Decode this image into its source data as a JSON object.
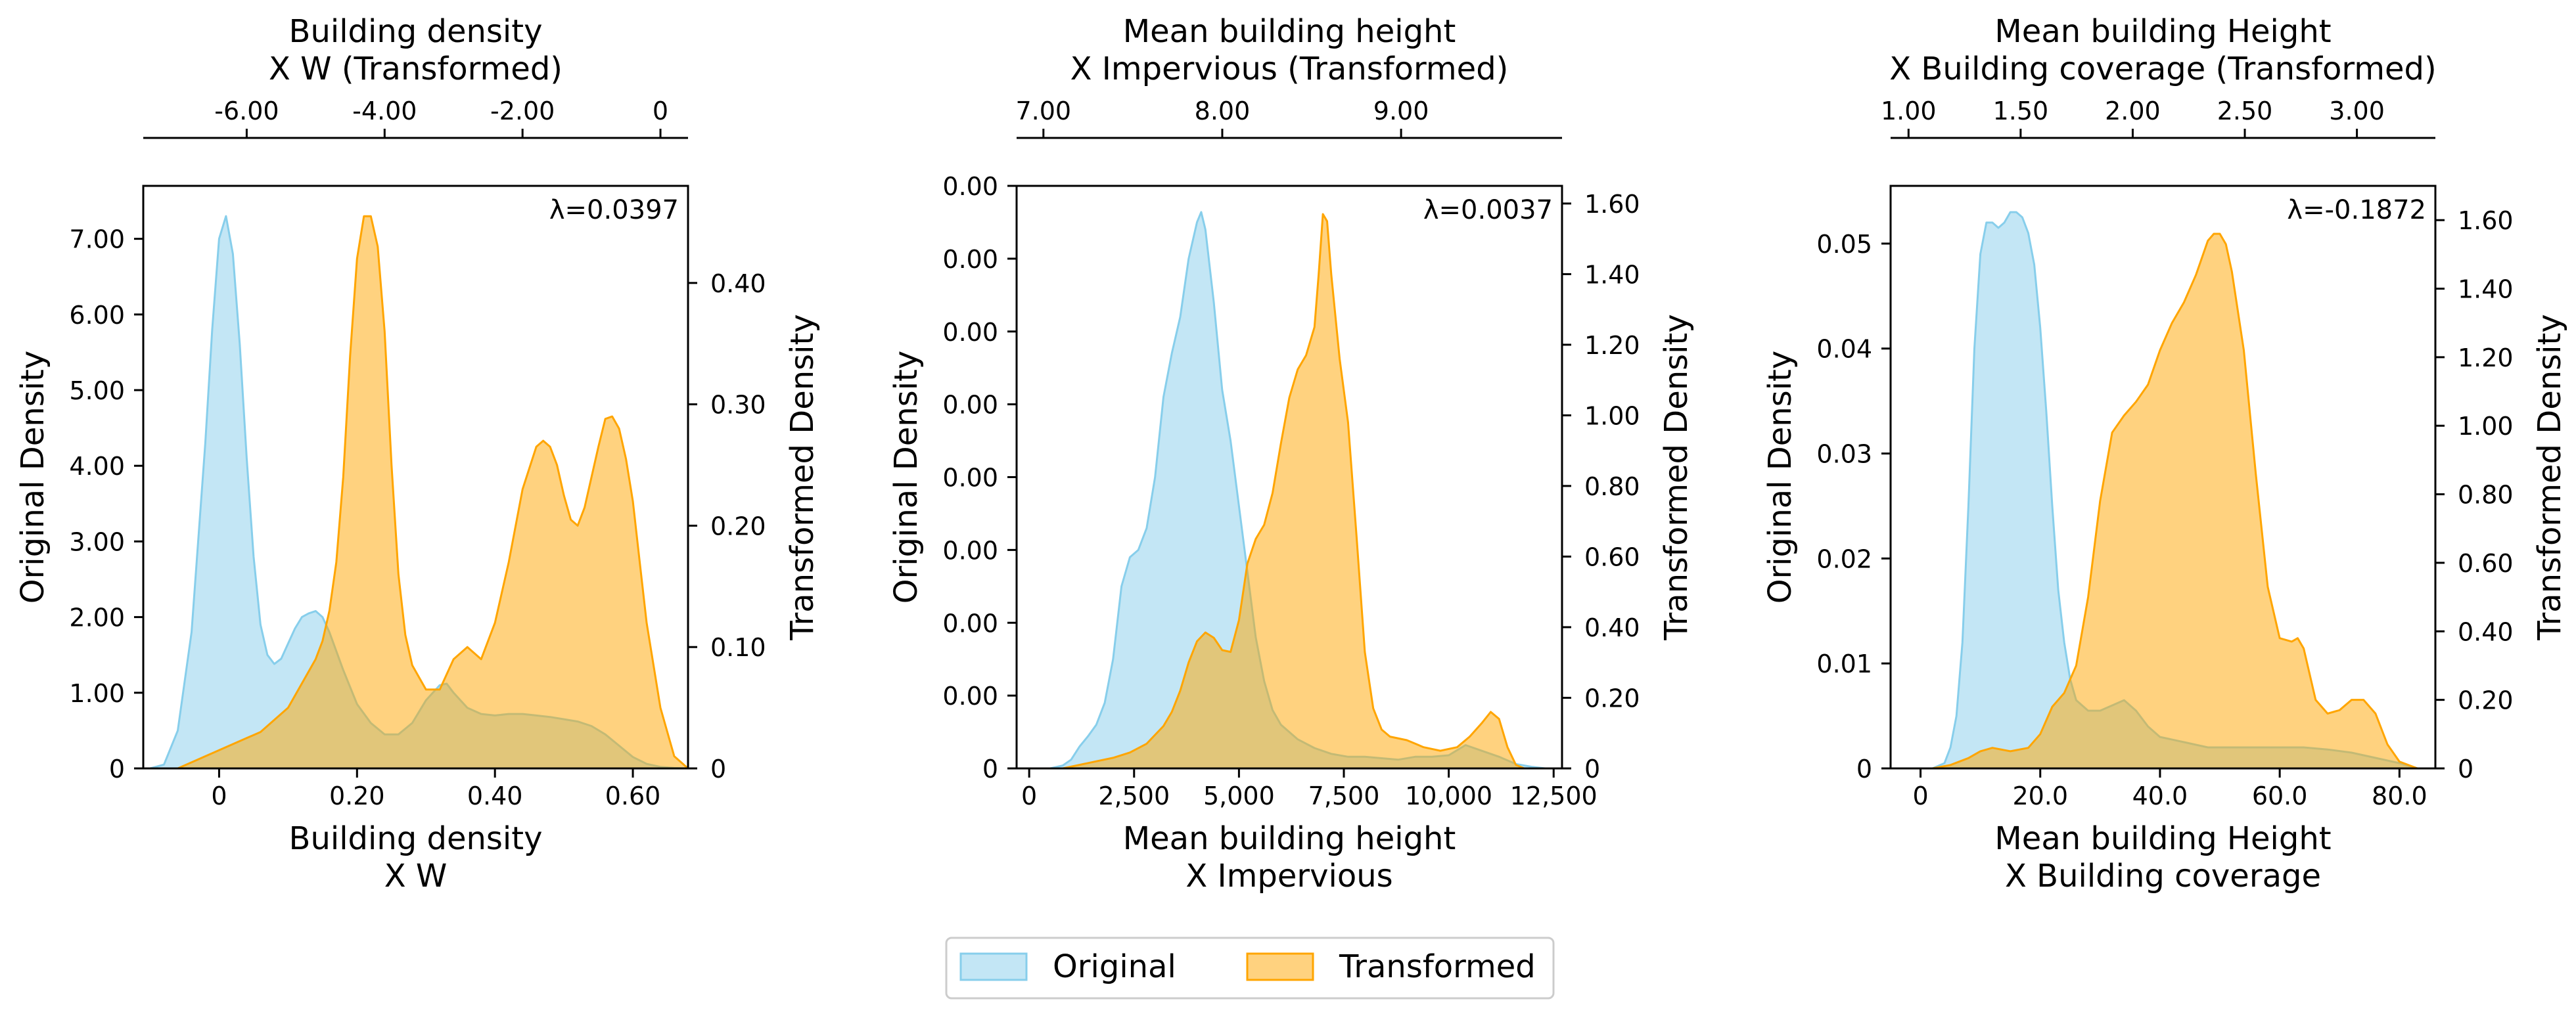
{
  "colors": {
    "original": "#87CEEB",
    "transformed": "#FFA500",
    "axis": "#000000"
  },
  "legend": {
    "placement": "bottom-center",
    "original_label": "Original",
    "transformed_label": "Transformed"
  },
  "chart_data": [
    {
      "type": "area",
      "lambda_text": "λ=0.0397",
      "top_xlabel_line1": "Building density",
      "top_xlabel_line2": "X W (Transformed)",
      "bottom_xlabel_line1": "Building density",
      "bottom_xlabel_line2": "X W",
      "ylabel_left": "Original Density",
      "ylabel_right": "Transformed Density",
      "bottom_xlim": [
        -0.11,
        0.68
      ],
      "bottom_xticks": [
        0,
        0.2,
        0.4,
        0.6
      ],
      "bottom_xtick_labels": [
        "0",
        "0.20",
        "0.40",
        "0.60"
      ],
      "left_ylim": [
        0,
        7.7
      ],
      "left_yticks": [
        0,
        1,
        2,
        3,
        4,
        5,
        6,
        7
      ],
      "left_ytick_labels": [
        "0",
        "1.00",
        "2.00",
        "3.00",
        "4.00",
        "5.00",
        "6.00",
        "7.00"
      ],
      "right_ylim": [
        0,
        0.48
      ],
      "right_yticks": [
        0,
        0.1,
        0.2,
        0.3,
        0.4
      ],
      "right_ytick_labels": [
        "0",
        "0.10",
        "0.20",
        "0.30",
        "0.40"
      ],
      "top_xlim": [
        -7.5,
        0.4
      ],
      "top_xticks": [
        -6,
        -4,
        -2,
        0
      ],
      "top_xtick_labels": [
        "-6.00",
        "-4.00",
        "-2.00",
        "0"
      ],
      "series": [
        {
          "name": "Original",
          "axis": "left",
          "x": [
            -0.1,
            -0.08,
            -0.06,
            -0.04,
            -0.02,
            -0.01,
            0.0,
            0.01,
            0.02,
            0.03,
            0.04,
            0.05,
            0.06,
            0.07,
            0.08,
            0.09,
            0.1,
            0.11,
            0.12,
            0.13,
            0.14,
            0.15,
            0.16,
            0.18,
            0.2,
            0.22,
            0.24,
            0.26,
            0.28,
            0.3,
            0.32,
            0.33,
            0.34,
            0.36,
            0.38,
            0.4,
            0.42,
            0.44,
            0.46,
            0.48,
            0.5,
            0.52,
            0.54,
            0.56,
            0.58,
            0.6,
            0.62,
            0.64,
            0.66,
            0.68
          ],
          "y": [
            0.0,
            0.05,
            0.5,
            1.8,
            4.3,
            5.8,
            7.0,
            7.3,
            6.8,
            5.6,
            4.1,
            2.8,
            1.9,
            1.5,
            1.38,
            1.45,
            1.65,
            1.85,
            2.0,
            2.05,
            2.08,
            2.0,
            1.8,
            1.3,
            0.85,
            0.6,
            0.45,
            0.45,
            0.6,
            0.9,
            1.1,
            1.12,
            1.0,
            0.8,
            0.72,
            0.7,
            0.72,
            0.72,
            0.7,
            0.68,
            0.65,
            0.62,
            0.56,
            0.45,
            0.3,
            0.15,
            0.06,
            0.02,
            0.005,
            0.0
          ]
        },
        {
          "name": "Transformed",
          "axis": "right",
          "x": [
            -0.06,
            -0.04,
            -0.02,
            0.0,
            0.02,
            0.04,
            0.06,
            0.08,
            0.1,
            0.12,
            0.14,
            0.15,
            0.16,
            0.17,
            0.18,
            0.19,
            0.2,
            0.21,
            0.22,
            0.23,
            0.24,
            0.25,
            0.26,
            0.27,
            0.28,
            0.3,
            0.32,
            0.34,
            0.36,
            0.38,
            0.4,
            0.42,
            0.44,
            0.46,
            0.47,
            0.48,
            0.49,
            0.5,
            0.51,
            0.52,
            0.53,
            0.54,
            0.55,
            0.56,
            0.57,
            0.58,
            0.59,
            0.6,
            0.61,
            0.62,
            0.64,
            0.66,
            0.68
          ],
          "y": [
            0.0,
            0.005,
            0.01,
            0.015,
            0.02,
            0.025,
            0.03,
            0.04,
            0.05,
            0.07,
            0.09,
            0.105,
            0.13,
            0.17,
            0.24,
            0.34,
            0.42,
            0.455,
            0.455,
            0.43,
            0.36,
            0.25,
            0.16,
            0.11,
            0.085,
            0.065,
            0.065,
            0.09,
            0.1,
            0.09,
            0.12,
            0.17,
            0.23,
            0.265,
            0.27,
            0.265,
            0.25,
            0.225,
            0.205,
            0.2,
            0.215,
            0.24,
            0.265,
            0.288,
            0.29,
            0.28,
            0.255,
            0.22,
            0.17,
            0.12,
            0.05,
            0.01,
            0.0
          ]
        }
      ]
    },
    {
      "type": "area",
      "lambda_text": "λ=0.0037",
      "top_xlabel_line1": "Mean building height",
      "top_xlabel_line2": "X Impervious (Transformed)",
      "bottom_xlabel_line1": "Mean building height",
      "bottom_xlabel_line2": "X Impervious",
      "ylabel_left": "Original Density",
      "ylabel_right": "Transformed Density",
      "bottom_xlim": [
        -300,
        12700
      ],
      "bottom_xticks": [
        0,
        2500,
        5000,
        7500,
        10000,
        12500
      ],
      "bottom_xtick_labels": [
        "0",
        "2,500",
        "5,000",
        "7,500",
        "10,000",
        "12,500"
      ],
      "left_ylim": [
        0,
        0.0004
      ],
      "left_yticks": [
        0,
        5e-05,
        0.0001,
        0.00015,
        0.0002,
        0.00025,
        0.0003,
        0.00035,
        0.0004
      ],
      "left_ytick_labels": [
        "0",
        "0.00",
        "0.00",
        "0.00",
        "0.00",
        "0.00",
        "0.00",
        "0.00",
        "0.00"
      ],
      "right_ylim": [
        0,
        1.65
      ],
      "right_yticks": [
        0,
        0.2,
        0.4,
        0.6,
        0.8,
        1.0,
        1.2,
        1.4,
        1.6
      ],
      "right_ytick_labels": [
        "0",
        "0.20",
        "0.40",
        "0.60",
        "0.80",
        "1.00",
        "1.20",
        "1.40",
        "1.60"
      ],
      "top_xlim": [
        6.85,
        9.9
      ],
      "top_xticks": [
        7,
        8,
        9
      ],
      "top_xtick_labels": [
        "7.00",
        "8.00",
        "9.00"
      ],
      "series": [
        {
          "name": "Original",
          "axis": "left",
          "x": [
            500,
            800,
            1000,
            1200,
            1400,
            1600,
            1800,
            2000,
            2200,
            2400,
            2600,
            2800,
            3000,
            3200,
            3400,
            3600,
            3800,
            4000,
            4100,
            4200,
            4400,
            4600,
            4800,
            5000,
            5200,
            5400,
            5600,
            5800,
            6000,
            6400,
            6800,
            7200,
            7600,
            8000,
            8400,
            8800,
            9200,
            9600,
            10000,
            10400,
            10800,
            11200,
            11600,
            12000,
            12300
          ],
          "y": [
            0.0,
            2e-06,
            6e-06,
            1.5e-05,
            2.2e-05,
            3e-05,
            4.5e-05,
            7.5e-05,
            0.000125,
            0.000145,
            0.00015,
            0.000165,
            0.0002,
            0.000255,
            0.000285,
            0.00031,
            0.00035,
            0.000375,
            0.000382,
            0.00037,
            0.00032,
            0.00026,
            0.000225,
            0.00018,
            0.000135,
            9e-05,
            6e-05,
            4e-05,
            3e-05,
            2e-05,
            1.4e-05,
            1e-05,
            8e-06,
            8e-06,
            7e-06,
            6e-06,
            8e-06,
            8e-06,
            9e-06,
            1.6e-05,
            1.2e-05,
            8e-06,
            3e-06,
            1e-06,
            0.0
          ]
        },
        {
          "name": "Transformed",
          "axis": "right",
          "x": [
            800,
            1200,
            1600,
            2000,
            2400,
            2800,
            3200,
            3400,
            3600,
            3800,
            4000,
            4200,
            4400,
            4600,
            4800,
            5000,
            5200,
            5400,
            5600,
            5800,
            6000,
            6200,
            6400,
            6600,
            6800,
            6900,
            7000,
            7100,
            7200,
            7400,
            7600,
            7800,
            8000,
            8200,
            8400,
            8600,
            9000,
            9400,
            9800,
            10200,
            10500,
            10800,
            11000,
            11200,
            11400,
            11600,
            11800
          ],
          "y": [
            0.0,
            0.01,
            0.02,
            0.03,
            0.045,
            0.07,
            0.12,
            0.16,
            0.22,
            0.3,
            0.36,
            0.385,
            0.37,
            0.335,
            0.33,
            0.42,
            0.58,
            0.65,
            0.69,
            0.78,
            0.92,
            1.05,
            1.13,
            1.17,
            1.25,
            1.4,
            1.57,
            1.55,
            1.4,
            1.16,
            0.98,
            0.66,
            0.33,
            0.17,
            0.11,
            0.09,
            0.08,
            0.06,
            0.05,
            0.06,
            0.09,
            0.13,
            0.16,
            0.14,
            0.06,
            0.01,
            0.0
          ]
        }
      ]
    },
    {
      "type": "area",
      "lambda_text": "λ=-0.1872",
      "top_xlabel_line1": "Mean building Height",
      "top_xlabel_line2": "X Building coverage (Transformed)",
      "bottom_xlabel_line1": "Mean building Height",
      "bottom_xlabel_line2": "X Building coverage",
      "ylabel_left": "Original Density",
      "ylabel_right": "Transformed Density",
      "bottom_xlim": [
        -5,
        86
      ],
      "bottom_xticks": [
        0,
        20,
        40,
        60,
        80
      ],
      "bottom_xtick_labels": [
        "0",
        "20.0",
        "40.0",
        "60.0",
        "80.0"
      ],
      "left_ylim": [
        0,
        0.0555
      ],
      "left_yticks": [
        0,
        0.01,
        0.02,
        0.03,
        0.04,
        0.05
      ],
      "left_ytick_labels": [
        "0",
        "0.01",
        "0.02",
        "0.03",
        "0.04",
        "0.05"
      ],
      "right_ylim": [
        0,
        1.7
      ],
      "right_yticks": [
        0,
        0.2,
        0.4,
        0.6,
        0.8,
        1.0,
        1.2,
        1.4,
        1.6
      ],
      "right_ytick_labels": [
        "0",
        "0.20",
        "0.40",
        "0.60",
        "0.80",
        "1.00",
        "1.20",
        "1.40",
        "1.60"
      ],
      "top_xlim": [
        0.92,
        3.35
      ],
      "top_xticks": [
        1.0,
        1.5,
        2.0,
        2.5,
        3.0
      ],
      "top_xtick_labels": [
        "1.00",
        "1.50",
        "2.00",
        "2.50",
        "3.00"
      ],
      "series": [
        {
          "name": "Original",
          "axis": "left",
          "x": [
            2,
            4,
            5,
            6,
            7,
            8,
            9,
            10,
            11,
            12,
            13,
            14,
            15,
            16,
            17,
            18,
            19,
            20,
            21,
            22,
            23,
            24,
            25,
            26,
            28,
            30,
            32,
            34,
            36,
            38,
            40,
            44,
            48,
            52,
            56,
            60,
            64,
            68,
            72,
            76,
            80,
            83
          ],
          "y": [
            0.0,
            0.0005,
            0.002,
            0.005,
            0.012,
            0.025,
            0.04,
            0.049,
            0.052,
            0.052,
            0.0515,
            0.052,
            0.053,
            0.053,
            0.0525,
            0.051,
            0.048,
            0.042,
            0.034,
            0.025,
            0.017,
            0.012,
            0.0085,
            0.0065,
            0.0055,
            0.0055,
            0.006,
            0.0065,
            0.0055,
            0.004,
            0.003,
            0.0025,
            0.002,
            0.002,
            0.002,
            0.002,
            0.002,
            0.0018,
            0.0015,
            0.001,
            0.0005,
            0.0
          ]
        },
        {
          "name": "Transformed",
          "axis": "right",
          "x": [
            2,
            5,
            8,
            10,
            12,
            15,
            18,
            20,
            22,
            24,
            26,
            28,
            30,
            32,
            34,
            36,
            38,
            40,
            42,
            44,
            46,
            48,
            49,
            50,
            51,
            52,
            54,
            56,
            58,
            60,
            62,
            63,
            64,
            66,
            68,
            70,
            72,
            74,
            76,
            78,
            80,
            83
          ],
          "y": [
            0.0,
            0.01,
            0.03,
            0.05,
            0.06,
            0.05,
            0.06,
            0.1,
            0.18,
            0.22,
            0.3,
            0.5,
            0.78,
            0.98,
            1.03,
            1.07,
            1.12,
            1.22,
            1.3,
            1.36,
            1.44,
            1.54,
            1.56,
            1.56,
            1.53,
            1.45,
            1.22,
            0.86,
            0.53,
            0.38,
            0.37,
            0.38,
            0.35,
            0.2,
            0.16,
            0.17,
            0.2,
            0.2,
            0.16,
            0.07,
            0.02,
            0.0
          ]
        }
      ]
    }
  ]
}
